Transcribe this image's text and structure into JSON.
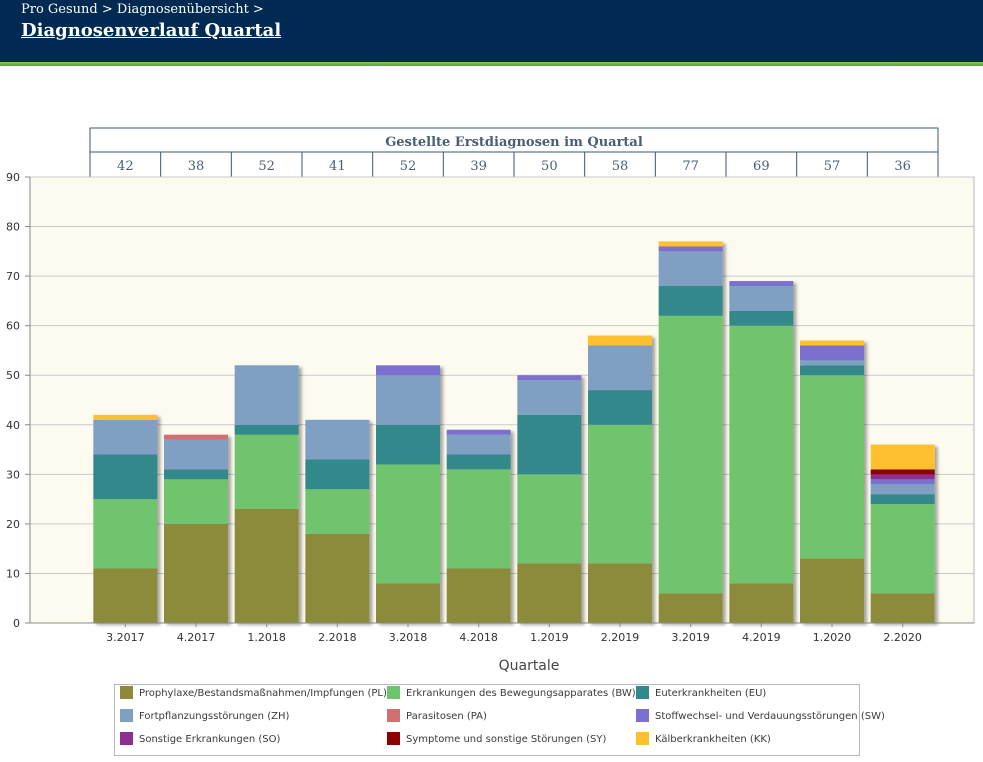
{
  "header": {
    "breadcrumb": "Pro Gesund > Diagnosenübersicht >",
    "title": "Diagnosenverlauf Quartal"
  },
  "chart_data": {
    "type": "bar",
    "stacked": true,
    "xlabel": "Quartale",
    "ylabel": "",
    "ylim": [
      0,
      90
    ],
    "yticks": [
      0,
      10,
      20,
      30,
      40,
      50,
      60,
      70,
      80,
      90
    ],
    "grid": true,
    "categories": [
      "3.2017",
      "4.2017",
      "1.2018",
      "2.2018",
      "3.2018",
      "4.2018",
      "1.2019",
      "2.2019",
      "3.2019",
      "4.2019",
      "1.2020",
      "2.2020"
    ],
    "totals_table": {
      "title": "Gestellte Erstdiagnosen im Quartal",
      "values": [
        42,
        38,
        52,
        41,
        52,
        39,
        50,
        58,
        77,
        69,
        57,
        36
      ]
    },
    "series": [
      {
        "name": "Prophylaxe/Bestandsmaßnahmen/Impfungen (PL)",
        "color": "#8c8a3a",
        "values": [
          11,
          20,
          23,
          18,
          8,
          11,
          12,
          12,
          6,
          8,
          13,
          6
        ]
      },
      {
        "name": "Erkrankungen des Bewegungsapparates (BW)",
        "color": "#6fc46e",
        "values": [
          14,
          9,
          15,
          9,
          24,
          20,
          18,
          28,
          56,
          52,
          37,
          18
        ]
      },
      {
        "name": "Euterkrankheiten (EU)",
        "color": "#33888a",
        "values": [
          9,
          2,
          2,
          6,
          8,
          3,
          12,
          7,
          6,
          3,
          2,
          2
        ]
      },
      {
        "name": "Fortpflanzungsstörungen (ZH)",
        "color": "#7f9fc3",
        "values": [
          7,
          6,
          12,
          8,
          10,
          4,
          7,
          9,
          7,
          5,
          1,
          2
        ]
      },
      {
        "name": "Parasitosen (PA)",
        "color": "#d07070",
        "values": [
          0,
          1,
          0,
          0,
          0,
          0,
          0,
          0,
          0,
          0,
          0,
          0
        ]
      },
      {
        "name": "Stoffwechsel- und Verdauungsstörungen (SW)",
        "color": "#7b6fcf",
        "values": [
          0,
          0,
          0,
          0,
          2,
          1,
          1,
          0,
          1,
          1,
          3,
          1
        ]
      },
      {
        "name": "Sonstige Erkrankungen (SO)",
        "color": "#8b2f8e",
        "values": [
          0,
          0,
          0,
          0,
          0,
          0,
          0,
          0,
          0,
          0,
          0,
          1
        ]
      },
      {
        "name": "Symptome und sonstige Störungen (SY)",
        "color": "#8b0000",
        "values": [
          0,
          0,
          0,
          0,
          0,
          0,
          0,
          0,
          0,
          0,
          0,
          1
        ]
      },
      {
        "name": "Kälberkrankheiten (KK)",
        "color": "#fdc02f",
        "values": [
          1,
          0,
          0,
          0,
          0,
          0,
          0,
          2,
          1,
          0,
          1,
          5
        ]
      }
    ]
  }
}
